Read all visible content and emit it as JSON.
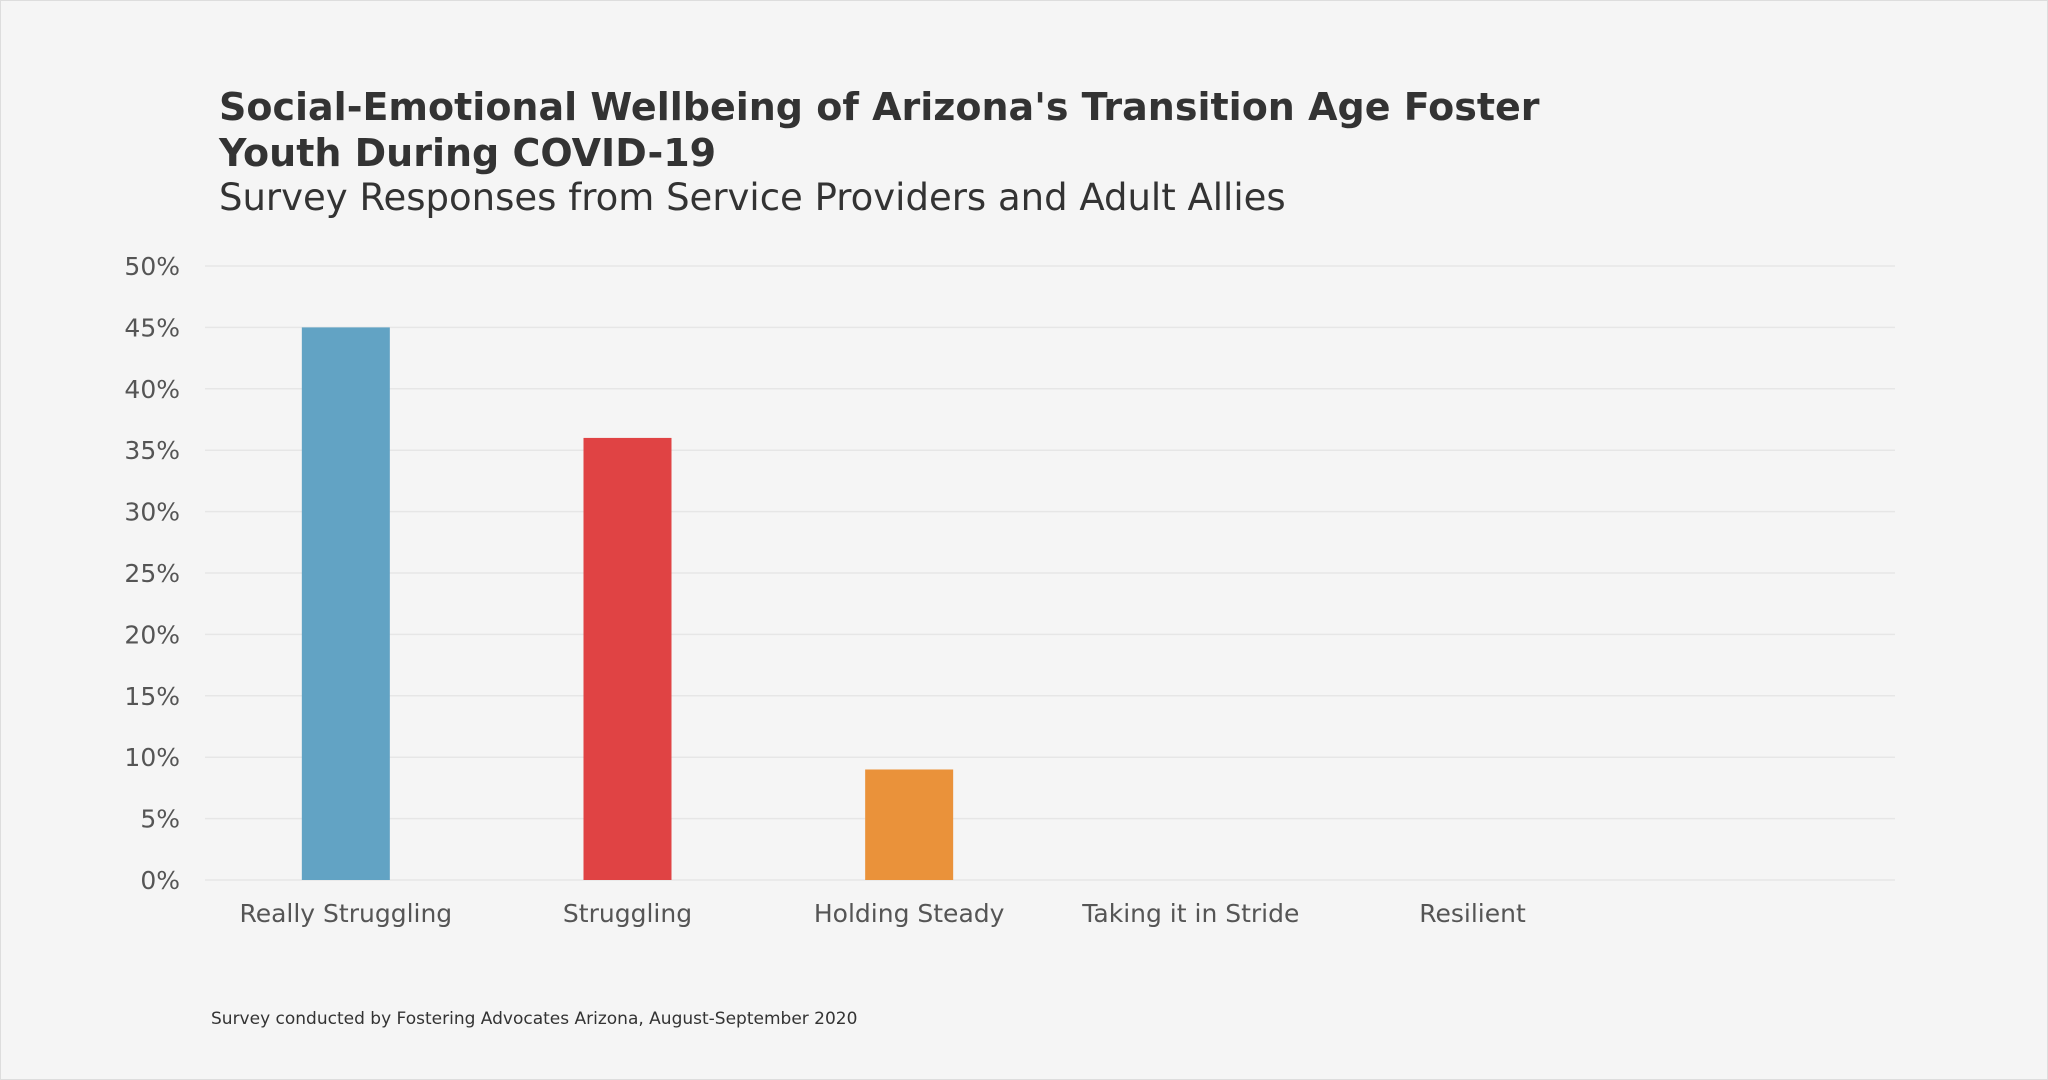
{
  "chart_data": {
    "type": "bar",
    "title": "Social-Emotional Wellbeing of Arizona's Transition Age Foster Youth During COVID-19",
    "subtitle": "Survey Responses from Service Providers and Adult Allies",
    "categories": [
      "Really Struggling",
      "Struggling",
      "Holding Steady",
      "Taking it in Stride",
      "Resilient"
    ],
    "values": [
      45,
      36,
      9,
      0,
      0
    ],
    "colors": [
      "#62a3c4",
      "#e04344",
      "#ea923a",
      "#cccccc",
      "#cccccc"
    ],
    "ylim": [
      0,
      50
    ],
    "yticks": [
      0,
      5,
      10,
      15,
      20,
      25,
      30,
      35,
      40,
      45,
      50
    ],
    "ytick_format": "percent",
    "grid": true,
    "xlabel": "",
    "ylabel": "",
    "footnote": "Survey conducted by Fostering Advocates Arizona, August-September 2020"
  }
}
